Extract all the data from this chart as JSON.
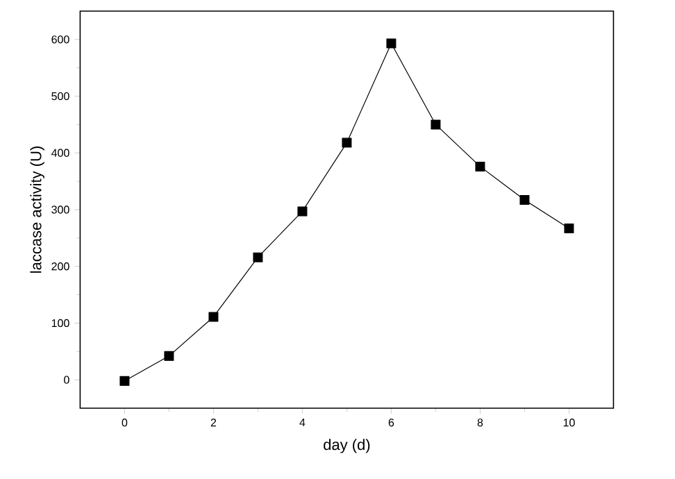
{
  "chart_data": {
    "type": "line",
    "xlabel": "day (d)",
    "ylabel": "laccase activity (U)",
    "x": [
      0,
      1,
      2,
      3,
      4,
      5,
      6,
      7,
      8,
      9,
      10
    ],
    "values": [
      -2,
      42,
      111,
      216,
      297,
      418,
      593,
      450,
      376,
      317,
      267
    ],
    "color": "#000000",
    "marker": "square",
    "line_style": "solid",
    "xlim": [
      -1,
      11
    ],
    "ylim": [
      -50,
      650
    ],
    "xticks": [
      0,
      2,
      4,
      6,
      8,
      10
    ],
    "yticks": [
      0,
      100,
      200,
      300,
      400,
      500,
      600
    ],
    "grid": false
  }
}
